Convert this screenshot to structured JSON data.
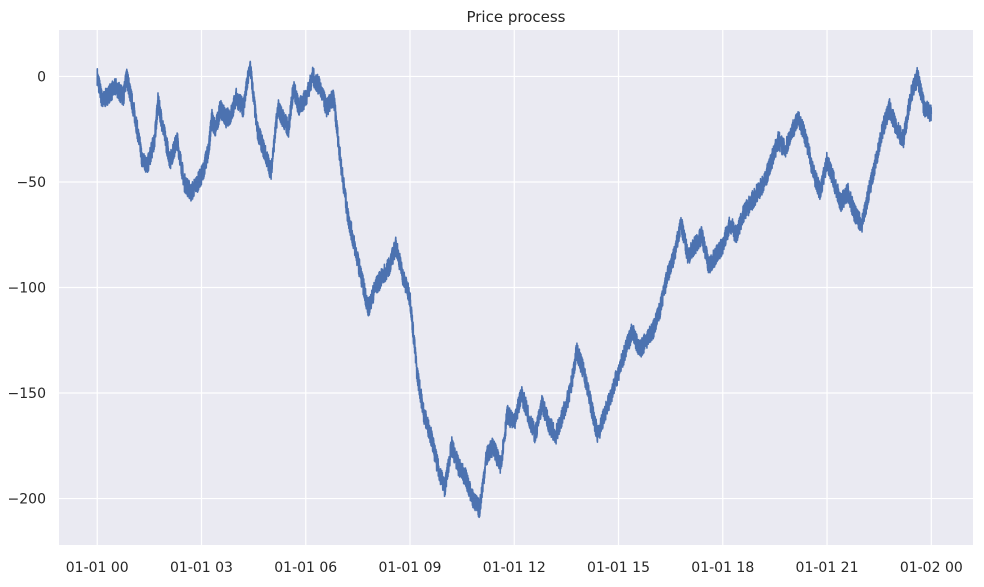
{
  "chart_data": {
    "type": "line",
    "title": "Price process",
    "xlabel": "",
    "ylabel": "",
    "x_tick_labels": [
      "01-01 00",
      "01-01 03",
      "01-01 06",
      "01-01 09",
      "01-01 12",
      "01-01 15",
      "01-01 18",
      "01-01 21",
      "01-02 00"
    ],
    "y_tick_labels": [
      "−200",
      "−150",
      "−100",
      "−50",
      "0"
    ],
    "y_ticks": [
      -200,
      -150,
      -100,
      -50,
      0
    ],
    "xlim_hours": [
      -1.1,
      25.2
    ],
    "ylim": [
      -222,
      22
    ],
    "grid": true,
    "legend": "none",
    "series": [
      {
        "line_color": "#4c72b0",
        "x_hours": [
          0,
          0.15,
          0.35,
          0.55,
          0.75,
          0.85,
          0.95,
          1.1,
          1.3,
          1.45,
          1.65,
          1.75,
          1.9,
          2.1,
          2.3,
          2.5,
          2.7,
          2.9,
          3.05,
          3.2,
          3.3,
          3.4,
          3.55,
          3.7,
          3.85,
          4.0,
          4.2,
          4.4,
          4.6,
          4.8,
          5.0,
          5.2,
          5.35,
          5.5,
          5.65,
          5.8,
          6.0,
          6.2,
          6.4,
          6.6,
          6.8,
          7.0,
          7.2,
          7.4,
          7.6,
          7.8,
          8.0,
          8.2,
          8.4,
          8.6,
          8.8,
          9.0,
          9.2,
          9.4,
          9.6,
          9.8,
          10.0,
          10.2,
          10.4,
          10.6,
          10.8,
          11.0,
          11.2,
          11.4,
          11.6,
          11.8,
          12.0,
          12.2,
          12.4,
          12.6,
          12.8,
          13.0,
          13.2,
          13.4,
          13.6,
          13.8,
          14.0,
          14.2,
          14.4,
          14.6,
          14.8,
          15.0,
          15.2,
          15.4,
          15.6,
          15.8,
          16.0,
          16.2,
          16.4,
          16.6,
          16.8,
          17.0,
          17.2,
          17.4,
          17.6,
          17.8,
          18.0,
          18.2,
          18.4,
          18.6,
          18.8,
          19.0,
          19.2,
          19.4,
          19.6,
          19.8,
          20.0,
          20.2,
          20.4,
          20.6,
          20.8,
          21.0,
          21.2,
          21.4,
          21.6,
          21.8,
          22.0,
          22.2,
          22.4,
          22.6,
          22.8,
          23.0,
          23.2,
          23.4,
          23.6,
          23.8,
          24.0
        ],
        "y": [
          0,
          -12,
          -8,
          -5,
          -10,
          0,
          -8,
          -20,
          -40,
          -42,
          -30,
          -12,
          -25,
          -40,
          -30,
          -50,
          -55,
          -50,
          -45,
          -35,
          -20,
          -25,
          -15,
          -20,
          -18,
          -10,
          -15,
          5,
          -25,
          -35,
          -45,
          -15,
          -20,
          -25,
          -5,
          -15,
          -10,
          0,
          -5,
          -15,
          -10,
          -40,
          -65,
          -80,
          -95,
          -110,
          -100,
          -95,
          -90,
          -80,
          -95,
          -105,
          -140,
          -160,
          -170,
          -185,
          -195,
          -175,
          -185,
          -190,
          -200,
          -205,
          -180,
          -175,
          -185,
          -160,
          -165,
          -150,
          -160,
          -170,
          -155,
          -165,
          -170,
          -160,
          -150,
          -130,
          -140,
          -155,
          -170,
          -160,
          -150,
          -140,
          -130,
          -120,
          -130,
          -125,
          -120,
          -110,
          -95,
          -85,
          -70,
          -85,
          -80,
          -75,
          -90,
          -85,
          -80,
          -70,
          -75,
          -65,
          -60,
          -55,
          -50,
          -40,
          -30,
          -35,
          -25,
          -20,
          -30,
          -45,
          -55,
          -40,
          -50,
          -60,
          -55,
          -65,
          -70,
          -55,
          -40,
          -25,
          -15,
          -25,
          -30,
          -10,
          0,
          -15,
          -18
        ]
      }
    ]
  }
}
